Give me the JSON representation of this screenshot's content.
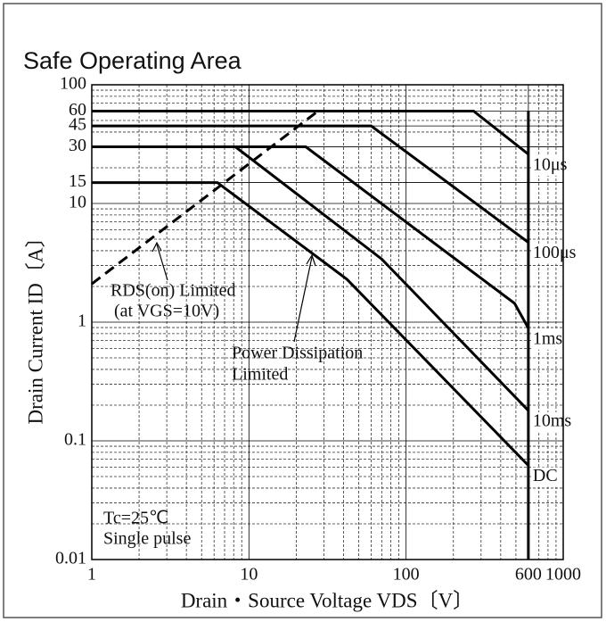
{
  "chart_data": {
    "type": "line",
    "title": "Safe Operating Area",
    "x_label": "Drain・Source Voltage  VDS〔V〕",
    "y_label": "Drain Current  ID〔A〕",
    "log_x": true,
    "log_y": true,
    "xlim": [
      1,
      1000
    ],
    "ylim": [
      0.01,
      100
    ],
    "xticks": [
      1,
      10,
      100,
      600,
      1000
    ],
    "yticks": [
      0.01,
      0.1,
      1,
      10,
      15,
      30,
      45,
      60,
      100
    ],
    "x_minor_grid": [
      2,
      3,
      4,
      5,
      6,
      7,
      8,
      9,
      20,
      30,
      40,
      50,
      60,
      70,
      80,
      90,
      200,
      300,
      400,
      500,
      700,
      800,
      900
    ],
    "y_minor_grid": [
      0.02,
      0.03,
      0.04,
      0.05,
      0.06,
      0.07,
      0.08,
      0.09,
      0.2,
      0.3,
      0.4,
      0.5,
      0.6,
      0.7,
      0.8,
      0.9,
      2,
      3,
      4,
      5,
      6,
      7,
      8,
      9,
      20,
      40,
      50,
      70,
      80,
      90
    ],
    "grid": true,
    "series": [
      {
        "name": "10μs",
        "color": "#000000",
        "x": [
          1,
          269,
          600
        ],
        "values": [
          60,
          60,
          26
        ]
      },
      {
        "name": "100μs",
        "color": "#000000",
        "x": [
          1,
          60,
          600
        ],
        "values": [
          45,
          45,
          4.7
        ]
      },
      {
        "name": "1ms",
        "color": "#000000",
        "x": [
          1,
          23,
          490,
          600
        ],
        "values": [
          30,
          30,
          1.44,
          0.89
        ]
      },
      {
        "name": "10ms",
        "color": "#000000",
        "x": [
          1,
          8.2,
          70,
          600
        ],
        "values": [
          30,
          30,
          3.4,
          0.18
        ]
      },
      {
        "name": "DC",
        "color": "#000000",
        "x": [
          1,
          6.3,
          42,
          600
        ],
        "values": [
          15,
          15,
          2.3,
          0.062
        ]
      }
    ],
    "voltage_limit": 600,
    "rds_limit": {
      "x": [
        1,
        27.5
      ],
      "values": [
        2.1,
        60
      ]
    },
    "annotations": [
      "RDS(on) Limited",
      "(at VGS=10V)",
      "Power Dissipation",
      "Limited",
      "Tc=25℃",
      "Single pulse"
    ]
  }
}
